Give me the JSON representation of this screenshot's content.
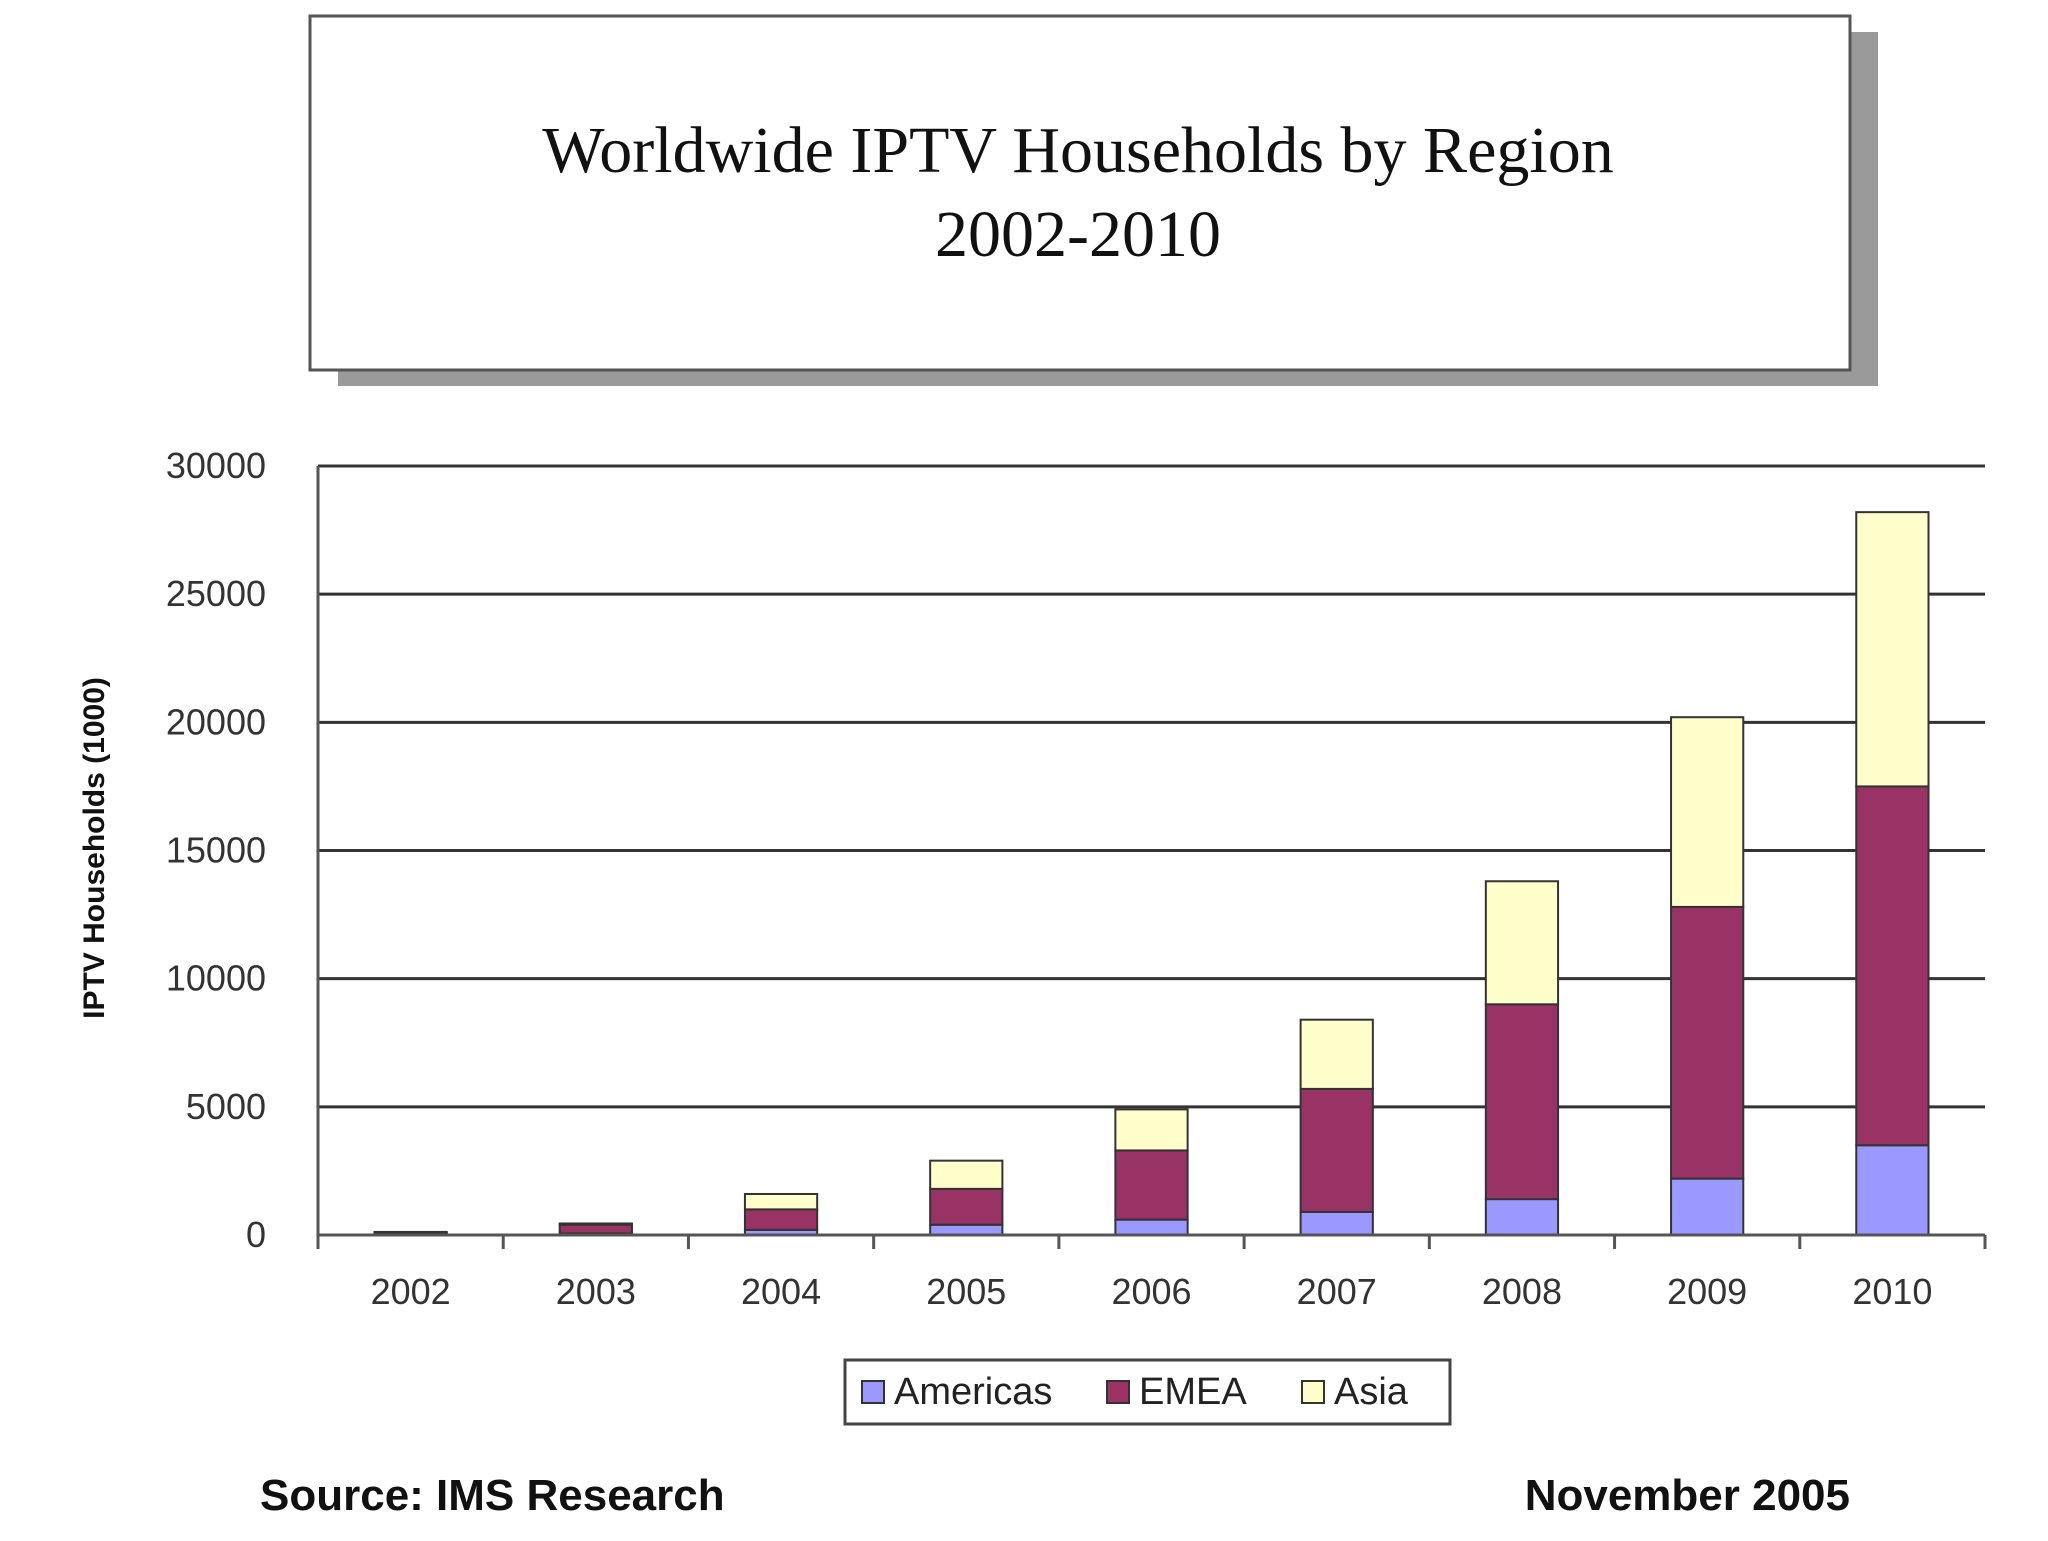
{
  "chart_data": {
    "type": "bar",
    "stacked": true,
    "title": "Worldwide IPTV Households by Region",
    "subtitle": "2002-2010",
    "xlabel": "",
    "ylabel": "IPTV Households (1000)",
    "categories": [
      "2002",
      "2003",
      "2004",
      "2005",
      "2006",
      "2007",
      "2008",
      "2009",
      "2010"
    ],
    "series": [
      {
        "name": "Americas",
        "color": "#9999ff",
        "values": [
          30,
          60,
          200,
          400,
          600,
          900,
          1400,
          2200,
          3500
        ]
      },
      {
        "name": "EMEA",
        "color": "#993366",
        "values": [
          70,
          340,
          800,
          1400,
          2700,
          4800,
          7600,
          10600,
          14000
        ]
      },
      {
        "name": "Asia",
        "color": "#ffffcc",
        "values": [
          20,
          50,
          600,
          1100,
          1600,
          2700,
          4800,
          7400,
          10700
        ]
      }
    ],
    "yticks": [
      "0",
      "5000",
      "10000",
      "15000",
      "20000",
      "25000",
      "30000"
    ],
    "ylim": [
      0,
      30000
    ],
    "grid": true,
    "legend": "bottom"
  },
  "footer": {
    "source": "Source: IMS Research",
    "date": "November 2005"
  }
}
